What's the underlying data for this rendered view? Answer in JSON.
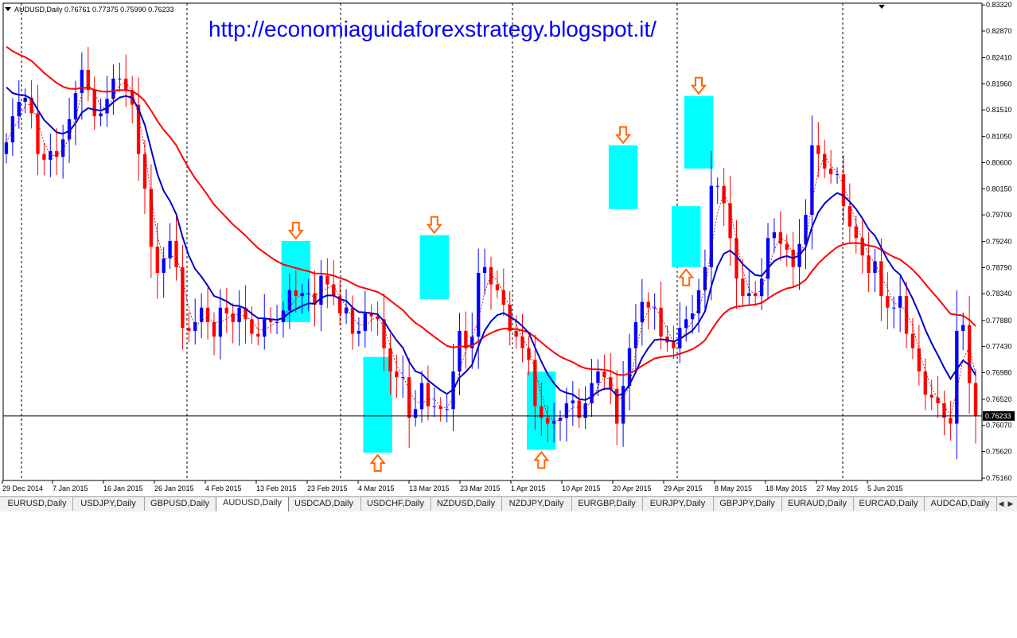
{
  "header": {
    "symbol_info": "AUDUSD,Daily  0.76761 0.77375 0.75990 0.76233",
    "watermark": "http://economiaguidaforexstrategy.blogspot.it/"
  },
  "price_axis": {
    "labels": [
      "0.83320",
      "0.82870",
      "0.82410",
      "0.81960",
      "0.81510",
      "0.81050",
      "0.80600",
      "0.80150",
      "0.79700",
      "0.79240",
      "0.78790",
      "0.78340",
      "0.77880",
      "0.77430",
      "0.76980",
      "0.76520",
      "0.76070",
      "0.75620",
      "0.75160"
    ],
    "current_price": "0.76233"
  },
  "time_axis": {
    "labels": [
      "29 Dec 2014",
      "7 Jan 2015",
      "16 Jan 2015",
      "26 Jan 2015",
      "4 Feb 2015",
      "13 Feb 2015",
      "23 Feb 2015",
      "4 Mar 2015",
      "13 Mar 2015",
      "23 Mar 2015",
      "1 Apr 2015",
      "10 Apr 2015",
      "20 Apr 2015",
      "29 Apr 2015",
      "8 May 2015",
      "18 May 2015",
      "27 May 2015",
      "5 Jun 2015"
    ]
  },
  "colors": {
    "bull": "#0000ff",
    "bear": "#ff0000",
    "ma_slow": "#ff0000",
    "ma_fast": "#0000c8",
    "ma_dotted": "#a00000",
    "highlight": "#00ffff",
    "arrow": "#ff6600",
    "watermark": "#0000ff"
  },
  "tabs": [
    {
      "label": "EURUSD,Daily",
      "active": false
    },
    {
      "label": "USDJPY,Daily",
      "active": false
    },
    {
      "label": "GBPUSD,Daily",
      "active": false
    },
    {
      "label": "AUDUSD,Daily",
      "active": true
    },
    {
      "label": "USDCAD,Daily",
      "active": false
    },
    {
      "label": "USDCHF,Daily",
      "active": false
    },
    {
      "label": "NZDUSD,Daily",
      "active": false
    },
    {
      "label": "NZDJPY,Daily",
      "active": false
    },
    {
      "label": "EURGBP,Daily",
      "active": false
    },
    {
      "label": "EURJPY,Daily",
      "active": false
    },
    {
      "label": "GBPJPY,Daily",
      "active": false
    },
    {
      "label": "EURAUD,Daily",
      "active": false
    },
    {
      "label": "EURCAD,Daily",
      "active": false
    },
    {
      "label": "AUDCAD,Daily",
      "active": false
    }
  ],
  "tab_nav": {
    "prev": "◀",
    "next": "▶"
  },
  "chart_data": {
    "type": "candlestick",
    "symbol": "AUDUSD",
    "timeframe": "Daily",
    "ylim": [
      0.7512,
      0.8335
    ],
    "last_ohlc": {
      "open": 0.76761,
      "high": 0.77375,
      "low": 0.7599,
      "close": 0.76233
    },
    "closes": [
      0.8095,
      0.814,
      0.8165,
      0.8172,
      0.8145,
      0.8075,
      0.8065,
      0.808,
      0.807,
      0.81,
      0.8135,
      0.818,
      0.822,
      0.8185,
      0.814,
      0.8145,
      0.817,
      0.8205,
      0.8205,
      0.8185,
      0.816,
      0.8075,
      0.8015,
      0.7915,
      0.787,
      0.7895,
      0.7925,
      0.788,
      0.7775,
      0.777,
      0.7785,
      0.781,
      0.7785,
      0.776,
      0.781,
      0.78,
      0.7785,
      0.781,
      0.779,
      0.7765,
      0.776,
      0.779,
      0.7785,
      0.7785,
      0.7805,
      0.784,
      0.783,
      0.7835,
      0.7835,
      0.7815,
      0.7865,
      0.785,
      0.783,
      0.78,
      0.781,
      0.7765,
      0.777,
      0.78,
      0.7795,
      0.779,
      0.774,
      0.77,
      0.769,
      0.769,
      0.762,
      0.7635,
      0.768,
      0.764,
      0.764,
      0.7635,
      0.7635,
      0.77,
      0.777,
      0.774,
      0.776,
      0.787,
      0.788,
      0.785,
      0.784,
      0.7815,
      0.777,
      0.776,
      0.774,
      0.772,
      0.764,
      0.762,
      0.761,
      0.7615,
      0.762,
      0.7645,
      0.765,
      0.762,
      0.7645,
      0.768,
      0.77,
      0.769,
      0.767,
      0.761,
      0.7675,
      0.774,
      0.7785,
      0.782,
      0.781,
      0.781,
      0.776,
      0.775,
      0.774,
      0.7775,
      0.779,
      0.78,
      0.784,
      0.788,
      0.802,
      0.802,
      0.799,
      0.793,
      0.786,
      0.783,
      0.7835,
      0.783,
      0.786,
      0.793,
      0.794,
      0.792,
      0.791,
      0.788,
      0.792,
      0.797,
      0.809,
      0.8075,
      0.805,
      0.804,
      0.804,
      0.7985,
      0.795,
      0.793,
      0.79,
      0.787,
      0.789,
      0.783,
      0.781,
      0.781,
      0.783,
      0.7765,
      0.774,
      0.77,
      0.766,
      0.7655,
      0.7645,
      0.762,
      0.761,
      0.777,
      0.778,
      0.768,
      0.7623
    ],
    "highlights": [
      {
        "x_index": 46,
        "top": 0.7925,
        "bottom": 0.7785,
        "arrow": "down"
      },
      {
        "x_index": 59,
        "top": 0.7725,
        "bottom": 0.756,
        "arrow": "up"
      },
      {
        "x_index": 68,
        "top": 0.7935,
        "bottom": 0.7825,
        "arrow": "down"
      },
      {
        "x_index": 85,
        "top": 0.77,
        "bottom": 0.7565,
        "arrow": "up"
      },
      {
        "x_index": 98,
        "top": 0.809,
        "bottom": 0.798,
        "arrow": "down"
      },
      {
        "x_index": 108,
        "top": 0.7985,
        "bottom": 0.788,
        "arrow": "up"
      },
      {
        "x_index": 110,
        "top": 0.8175,
        "bottom": 0.805,
        "arrow": "down"
      }
    ]
  }
}
